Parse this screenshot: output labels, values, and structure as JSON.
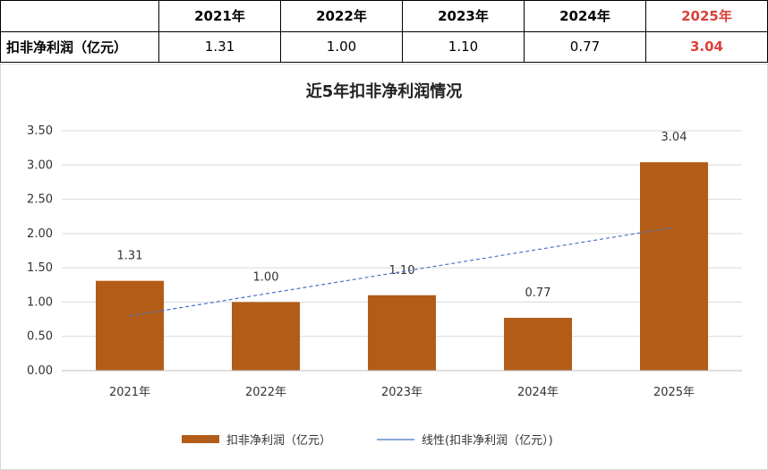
{
  "table": {
    "row_label": "扣非净利润（亿元）",
    "years": [
      "2021年",
      "2022年",
      "2023年",
      "2024年",
      "2025年"
    ],
    "values": [
      "1.31",
      "1.00",
      "1.10",
      "0.77",
      "3.04"
    ]
  },
  "chart_data": {
    "type": "bar",
    "title": "近5年扣非净利润情况",
    "categories": [
      "2021年",
      "2022年",
      "2023年",
      "2024年",
      "2025年"
    ],
    "series": [
      {
        "name": "扣非净利润（亿元）",
        "values": [
          1.31,
          1.0,
          1.1,
          0.77,
          3.04
        ],
        "color": "#b35c17"
      }
    ],
    "trendline": {
      "name": "线性(扣非净利润（亿元）)",
      "color": "#4472c4",
      "style": "dashed"
    },
    "ylim": [
      0,
      3.5
    ],
    "yticks": [
      "0.00",
      "0.50",
      "1.00",
      "1.50",
      "2.00",
      "2.50",
      "3.00",
      "3.50"
    ],
    "data_labels": [
      "1.31",
      "1.00",
      "1.10",
      "0.77",
      "3.04"
    ],
    "grid": true,
    "legend": "bottom",
    "xlabel": "",
    "ylabel": ""
  }
}
